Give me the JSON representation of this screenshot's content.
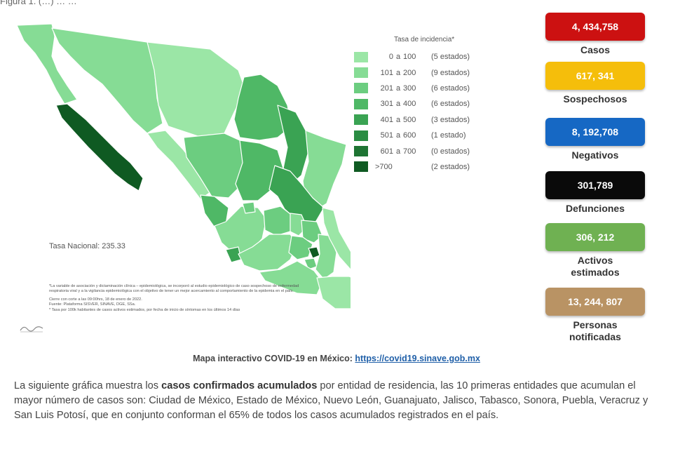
{
  "header": {
    "cut_text": "Figura 1. (…) … …"
  },
  "map": {
    "legend_title": "Tasa de incidencia*",
    "legend": [
      {
        "from": "0",
        "sep": "a",
        "to": "100",
        "count": "(5 estados)",
        "color": "#9be6a6"
      },
      {
        "from": "101",
        "sep": "a",
        "to": "200",
        "count": "(9 estados)",
        "color": "#86dc95"
      },
      {
        "from": "201",
        "sep": "a",
        "to": "300",
        "count": "(6 estados)",
        "color": "#6ccd80"
      },
      {
        "from": "301",
        "sep": "a",
        "to": "400",
        "count": "(6 estados)",
        "color": "#4fb866"
      },
      {
        "from": "401",
        "sep": "a",
        "to": "500",
        "count": "(3 estados)",
        "color": "#3aa353"
      },
      {
        "from": "501",
        "sep": "a",
        "to": "600",
        "count": "(1 estado)",
        "color": "#2a8c43"
      },
      {
        "from": "601",
        "sep": "a",
        "to": "700",
        "count": "(0 estados)",
        "color": "#1e7433"
      },
      {
        "from": ">700",
        "sep": "",
        "to": "",
        "count": "(2 estados)",
        "color": "#0f5a22"
      }
    ],
    "tasa_nacional": "Tasa Nacional: 235.33",
    "notes": {
      "note1": "*La variable de asociación y dictaminación clínica – epidemiológica, se incorporó al estudio epidemiológico de caso sospechoso de enfermedad respiratoria viral y a la vigilancia epidemiológica con el objetivo de tener un mejor acercamiento al comportamiento de la epidemia en el país.",
      "note2": "Cierre con corte a las 09:00hrs, 18 de enero de 2022.",
      "note3": "Fuente: Plataforma SISVER, SINAVE, DGE, SSa.",
      "note4": "* Tasa por 100k habitantes de casos activos estimados, por fecha de inicio de síntomas en los últimos 14 días"
    }
  },
  "stats": [
    {
      "value": "4, 434,758",
      "label": "Casos",
      "color": "#cc1111"
    },
    {
      "value": "617, 341",
      "label": "Sospechosos",
      "color": "#f5be0b"
    },
    {
      "value": "8, 192,708",
      "label": "Negativos",
      "color": "#1668c4"
    },
    {
      "value": "301,789",
      "label": "Defunciones",
      "color": "#0a0a0a"
    },
    {
      "value": "306, 212",
      "label": "Activos estimados",
      "color": "#6fb152"
    },
    {
      "value": "13, 244, 807",
      "label": "Personas notificadas",
      "color": "#b99364"
    }
  ],
  "link": {
    "label": "Mapa interactivo COVID-19 en México:",
    "url_text": "https://covid19.sinave.gob.mx"
  },
  "paragraph": {
    "part1": "La siguiente gráfica muestra los ",
    "bold": "casos confirmados acumulados",
    "part2": " por entidad de residencia, las 10 primeras entidades que acumulan el mayor número de casos son: Ciudad de México, Estado de México, Nuevo León, Guanajuato, Jalisco, Tabasco, Sonora, Puebla, Veracruz y San Luis Potosí, que en conjunto conforman el 65% de todos los casos acumulados registrados en el país."
  }
}
